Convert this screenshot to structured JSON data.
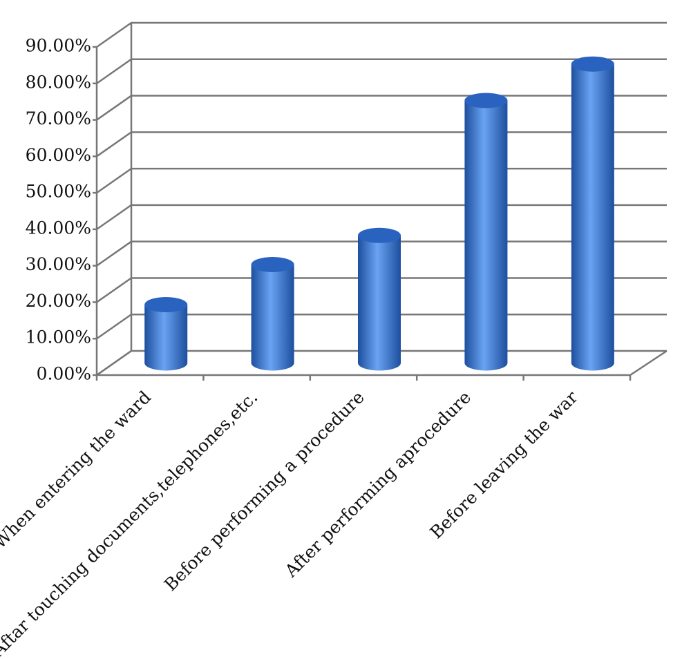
{
  "chart_data": {
    "type": "bar3d",
    "categories": [
      "When entering the ward",
      "Aftar touching documents,telephones,etc.",
      "Before performing a procedure",
      "After performing aprocedure",
      "Before leaving the war"
    ],
    "values": [
      16,
      27,
      35,
      72,
      82
    ],
    "color": "#3f7fdc",
    "ylim": [
      0,
      90
    ],
    "yticks": [
      {
        "value": 0,
        "label": "0.00%"
      },
      {
        "value": 10,
        "label": "10.00%"
      },
      {
        "value": 20,
        "label": "20.00%"
      },
      {
        "value": 30,
        "label": "30.00%"
      },
      {
        "value": 40,
        "label": "40.00%"
      },
      {
        "value": 50,
        "label": "50.00%"
      },
      {
        "value": 60,
        "label": "60.00%"
      },
      {
        "value": 70,
        "label": "70.00%"
      },
      {
        "value": 80,
        "label": "80.00%"
      },
      {
        "value": 90,
        "label": "90.00%"
      }
    ],
    "grid": true
  }
}
